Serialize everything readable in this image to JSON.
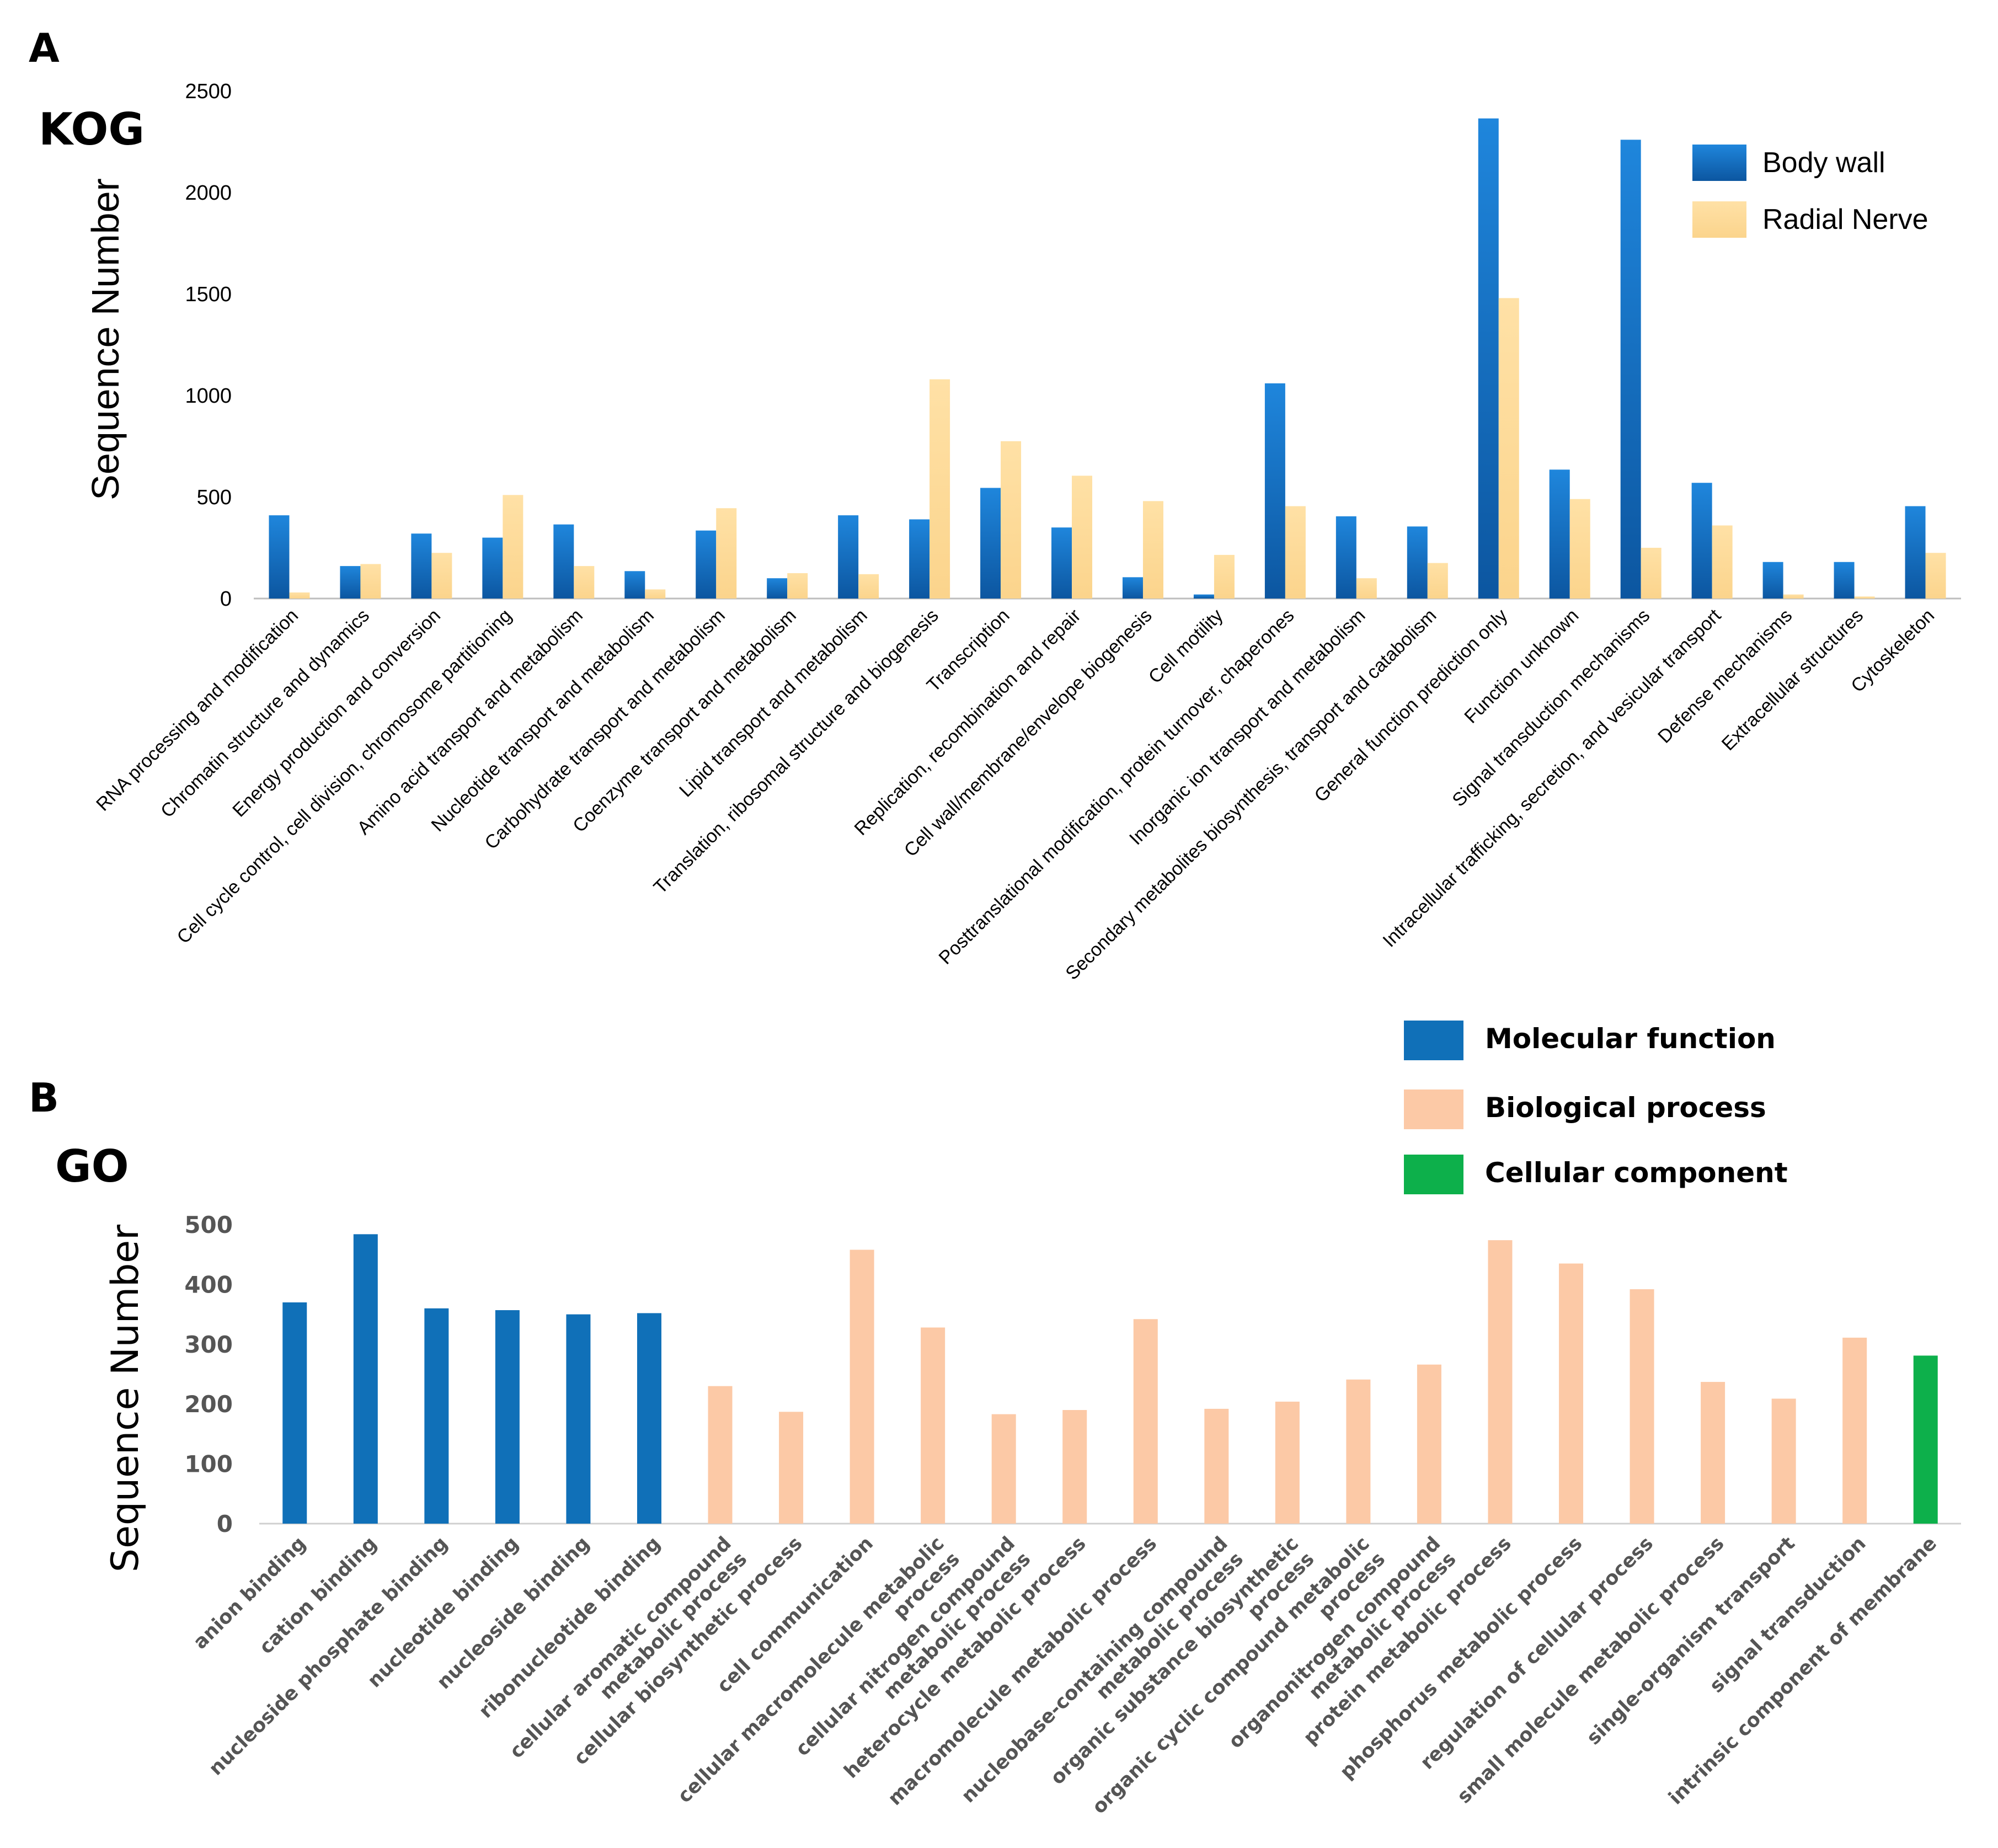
{
  "panel_a": {
    "letter": "A",
    "name": "KOG"
  },
  "panel_b": {
    "letter": "B",
    "name": "GO"
  },
  "chart_data": [
    {
      "type": "bar",
      "title": "",
      "xlabel": "",
      "ylabel": "Sequence Number",
      "ylim": [
        0,
        2500
      ],
      "yticks": [
        0,
        500,
        1000,
        1500,
        2000,
        2500
      ],
      "legend_position": "top-right",
      "categories": [
        "RNA processing and modification",
        "Chromatin structure and dynamics",
        "Energy production and conversion",
        "Cell cycle control, cell division, chromosome partitioning",
        "Amino acid transport and metabolism",
        "Nucleotide transport and metabolism",
        "Carbohydrate transport and metabolism",
        "Coenzyme transport and metabolism",
        "Lipid transport and metabolism",
        "Translation, ribosomal structure and biogenesis",
        "Transcription",
        "Replication, recombination and repair",
        "Cell wall/membrane/envelope biogenesis",
        "Cell motility",
        "Posttranslational modification, protein turnover, chaperones",
        "Inorganic ion transport and metabolism",
        "Secondary metabolites biosynthesis, transport and catabolism",
        "General function prediction only",
        "Function unknown",
        "Signal transduction mechanisms",
        "Intracellular trafficking, secretion, and vesicular transport",
        "Defense mechanisms",
        "Extracellular structures",
        "Cytoskeleton"
      ],
      "series": [
        {
          "name": "Body wall",
          "color": "#1a6fc0",
          "values": [
            410,
            160,
            320,
            300,
            365,
            135,
            335,
            100,
            410,
            390,
            545,
            350,
            105,
            20,
            1060,
            405,
            355,
            2365,
            635,
            2260,
            570,
            180,
            180,
            455
          ]
        },
        {
          "name": "Radial Nerve",
          "color": "#fddc9a",
          "values": [
            30,
            170,
            225,
            510,
            160,
            45,
            445,
            125,
            120,
            1080,
            775,
            605,
            480,
            215,
            455,
            100,
            175,
            1480,
            490,
            250,
            360,
            20,
            10,
            225
          ]
        }
      ]
    },
    {
      "type": "bar",
      "title": "",
      "xlabel": "",
      "ylabel": "Sequence Number",
      "ylim": [
        0,
        500
      ],
      "yticks": [
        0,
        100,
        200,
        300,
        400,
        500
      ],
      "legend_position": "top-right",
      "legend": [
        {
          "name": "Molecular function",
          "color": "#1070b8"
        },
        {
          "name": "Biological process",
          "color": "#fcc9a6"
        },
        {
          "name": "Cellular component",
          "color": "#0db04b"
        }
      ],
      "categories": [
        [
          "anion binding"
        ],
        [
          "cation binding"
        ],
        [
          "nucleoside phosphate binding"
        ],
        [
          "nucleotide binding"
        ],
        [
          "nucleoside binding"
        ],
        [
          "ribonucleotide binding"
        ],
        [
          "cellular aromatic compound",
          "metabolic process"
        ],
        [
          "cellular biosynthetic process"
        ],
        [
          "cell communication"
        ],
        [
          "cellular macromolecule metabolic",
          "process"
        ],
        [
          "cellular nitrogen compound",
          "metabolic process"
        ],
        [
          "heterocycle metabolic process"
        ],
        [
          "macromolecule metabolic process"
        ],
        [
          "nucleobase-containing compound",
          "metabolic process"
        ],
        [
          "organic substance biosynthetic",
          "process"
        ],
        [
          "organic cyclic compound metabolic",
          "process"
        ],
        [
          "organonitrogen compound",
          "metabolic process"
        ],
        [
          "protein metabolic process"
        ],
        [
          "phosphorus metabolic process"
        ],
        [
          "regulation of cellular process"
        ],
        [
          "small molecule metabolic process"
        ],
        [
          "single-organism transport"
        ],
        [
          "signal transduction"
        ],
        [
          "intrinsic component of membrane"
        ]
      ],
      "values": [
        370,
        484,
        360,
        357,
        350,
        352,
        230,
        187,
        458,
        328,
        183,
        190,
        342,
        192,
        204,
        241,
        266,
        474,
        435,
        392,
        237,
        209,
        311,
        281
      ],
      "groups": [
        "Molecular function",
        "Molecular function",
        "Molecular function",
        "Molecular function",
        "Molecular function",
        "Molecular function",
        "Biological process",
        "Biological process",
        "Biological process",
        "Biological process",
        "Biological process",
        "Biological process",
        "Biological process",
        "Biological process",
        "Biological process",
        "Biological process",
        "Biological process",
        "Biological process",
        "Biological process",
        "Biological process",
        "Biological process",
        "Biological process",
        "Biological process",
        "Cellular component"
      ]
    }
  ]
}
